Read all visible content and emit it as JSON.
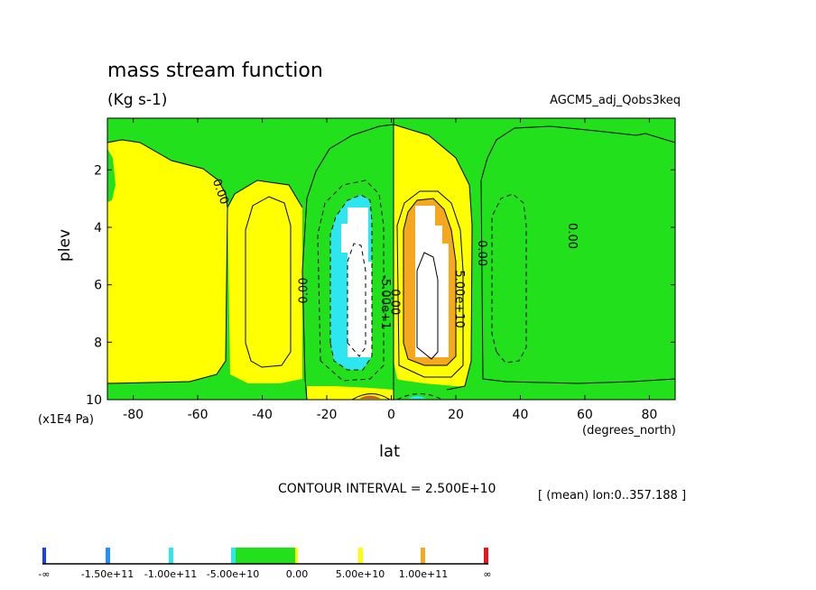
{
  "title": "mass stream function",
  "units": "(Kg s-1)",
  "dataset": "AGCM5_adj_Qobs3keq",
  "colors": {
    "bg_yellow": "#ffff00",
    "green": "#22e01c",
    "cyan": "#2ee6f0",
    "white": "#ffffff",
    "orange": "#f5a81e",
    "blue": "#1a3cff",
    "mid_blue": "#1e90ff",
    "red": "#e8141c",
    "brown": "#c8641e"
  },
  "chart_data": {
    "type": "contour",
    "title": "mass stream function",
    "xlabel": "lat",
    "ylabel": "plev",
    "x_units": "(degrees_north)",
    "y_units": "(x1E4 Pa)",
    "xlim": [
      -88,
      88
    ],
    "ylim": [
      10,
      0.2
    ],
    "x_ticks": [
      -80,
      -60,
      -40,
      -20,
      0,
      20,
      40,
      60,
      80
    ],
    "x_tick_labels": [
      "-80",
      "-60",
      "-40",
      "-20",
      "0",
      "20",
      "40",
      "60",
      "80"
    ],
    "y_ticks": [
      2,
      4,
      6,
      8,
      10
    ],
    "y_tick_labels": [
      "2",
      "4",
      "6",
      "8",
      "10"
    ],
    "contour_interval": "CONTOUR INTERVAL = 2.500E+10",
    "mean_info": "[ (mean) lon:0..357.188 ]",
    "contour_labels": [
      {
        "text": "0.00",
        "lat": -54,
        "plev": 2.8,
        "angle": 70
      },
      {
        "text": "0.00",
        "lat": -26,
        "plev": 6.2,
        "angle": -90
      },
      {
        "text": "-5.00e+1",
        "lat": -3,
        "plev": 6.6,
        "angle": 90
      },
      {
        "text": "0.00",
        "lat": 0,
        "plev": 6.6,
        "angle": 90
      },
      {
        "text": "5.00e+10",
        "lat": 20,
        "plev": 6.5,
        "angle": 90
      },
      {
        "text": "0.00",
        "lat": 27,
        "plev": 4.9,
        "angle": 90
      },
      {
        "text": "0.00",
        "lat": 55,
        "plev": 4.3,
        "angle": 90
      }
    ],
    "legend": {
      "levels": [
        "-∞",
        "-1.50e+11",
        "-1.00e+11",
        "-5.00e+10",
        "0.00",
        "5.00e+10",
        "1.00e+11",
        "∞"
      ]
    }
  }
}
